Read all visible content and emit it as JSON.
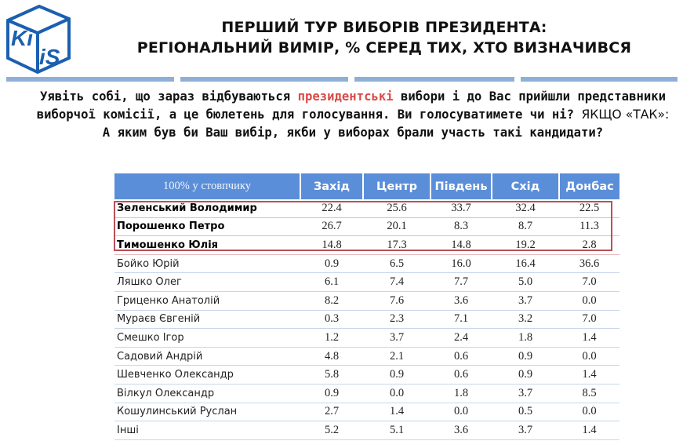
{
  "logo": {
    "text_top": "Ki",
    "text_bottom": "iS",
    "color": "#1b5fb0"
  },
  "title": {
    "line1": "ПЕРШИЙ ТУР ВИБОРІВ ПРЕЗИДЕНТА:",
    "line2": "РЕГІОНАЛЬНИЙ ВИМІР, % СЕРЕД ТИХ, ХТО ВИЗНАЧИВСЯ"
  },
  "question": {
    "part1": "Уявіть собі, що зараз відбуваються ",
    "highlight": "президентські",
    "part2": " вибори і до Вас прийшли представники виборчої комісії, а це бюлетень для голосування. Ви голосуватимете чи ні? ",
    "condition": "ЯКЩО «ТАК»:",
    "part3": " А яким був би Ваш вибір, якби у виборах брали участь такі кандидати?"
  },
  "table": {
    "corner_label": "100% у стовпчику",
    "columns": [
      "Захід",
      "Центр",
      "Південь",
      "Схід",
      "Донбас"
    ],
    "top_rows": [
      {
        "name": "Зеленський Володимир",
        "values": [
          "22.4",
          "25.6",
          "33.7",
          "32.4",
          "22.5"
        ]
      },
      {
        "name": "Порошенко Петро",
        "values": [
          "26.7",
          "20.1",
          "8.3",
          "8.7",
          "11.3"
        ]
      },
      {
        "name": "Тимошенко Юлія",
        "values": [
          "14.8",
          "17.3",
          "14.8",
          "19.2",
          "2.8"
        ]
      }
    ],
    "other_rows": [
      {
        "name": "Бойко Юрій",
        "values": [
          "0.9",
          "6.5",
          "16.0",
          "16.4",
          "36.6"
        ]
      },
      {
        "name": "Ляшко Олег",
        "values": [
          "6.1",
          "7.4",
          "7.7",
          "5.0",
          "7.0"
        ]
      },
      {
        "name": "Гриценко Анатолій",
        "values": [
          "8.2",
          "7.6",
          "3.6",
          "3.7",
          "0.0"
        ]
      },
      {
        "name": "Мураєв Євгеній",
        "values": [
          "0.3",
          "2.3",
          "7.1",
          "3.2",
          "7.0"
        ]
      },
      {
        "name": "Смешко Ігор",
        "values": [
          "1.2",
          "3.7",
          "2.4",
          "1.8",
          "1.4"
        ]
      },
      {
        "name": "Садовий Андрій",
        "values": [
          "4.8",
          "2.1",
          "0.6",
          "0.9",
          "0.0"
        ]
      },
      {
        "name": "Шевченко Олександр",
        "values": [
          "5.8",
          "0.9",
          "0.6",
          "0.9",
          "1.4"
        ]
      },
      {
        "name": "Вілкул Олександр",
        "values": [
          "0.9",
          "0.0",
          "1.8",
          "3.7",
          "8.5"
        ]
      },
      {
        "name": "Кошулинський Руслан",
        "values": [
          "2.7",
          "1.4",
          "0.0",
          "0.5",
          "0.0"
        ]
      },
      {
        "name": "Інші",
        "values": [
          "5.2",
          "5.1",
          "3.6",
          "3.7",
          "1.4"
        ]
      }
    ]
  },
  "colors": {
    "header_bg": "#5b8ed8",
    "highlight_text": "#d94a48",
    "highlight_border": "#b8505a",
    "rule": "#8fb0d6"
  }
}
